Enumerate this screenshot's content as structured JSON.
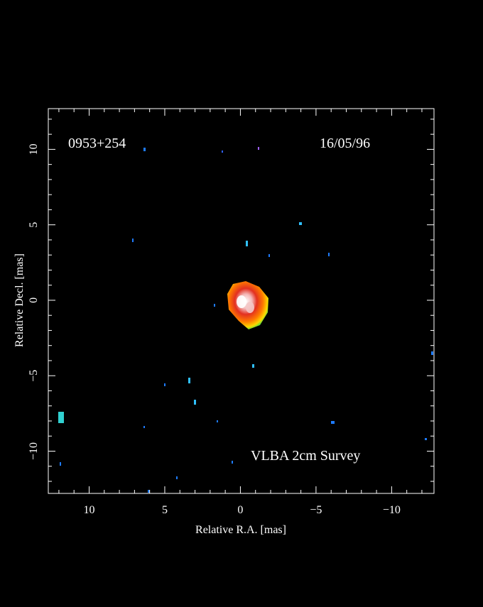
{
  "chart_data": {
    "type": "image",
    "source_label": "0953+254",
    "date_label": "16/05/96",
    "survey_label": "VLBA 2cm Survey",
    "x_label": "Relative R.A. [mas]",
    "y_label": "Relative Decl. [mas]",
    "xlim": [
      12.7,
      -12.8
    ],
    "ylim": [
      -12.8,
      12.7
    ],
    "xticks": [
      10,
      5,
      0,
      {
        "value": -5,
        "label": "−5"
      },
      {
        "value": -10,
        "label": "−10"
      }
    ],
    "yticks": [
      {
        "value": -10,
        "label": "−10"
      },
      {
        "value": -5,
        "label": "−5"
      },
      0,
      5,
      10
    ],
    "minor_ticks": [
      -12,
      -11,
      -9,
      -8,
      -7,
      -6,
      -4,
      -3,
      -2,
      -1,
      1,
      2,
      3,
      4,
      6,
      7,
      8,
      9,
      11,
      12
    ]
  }
}
